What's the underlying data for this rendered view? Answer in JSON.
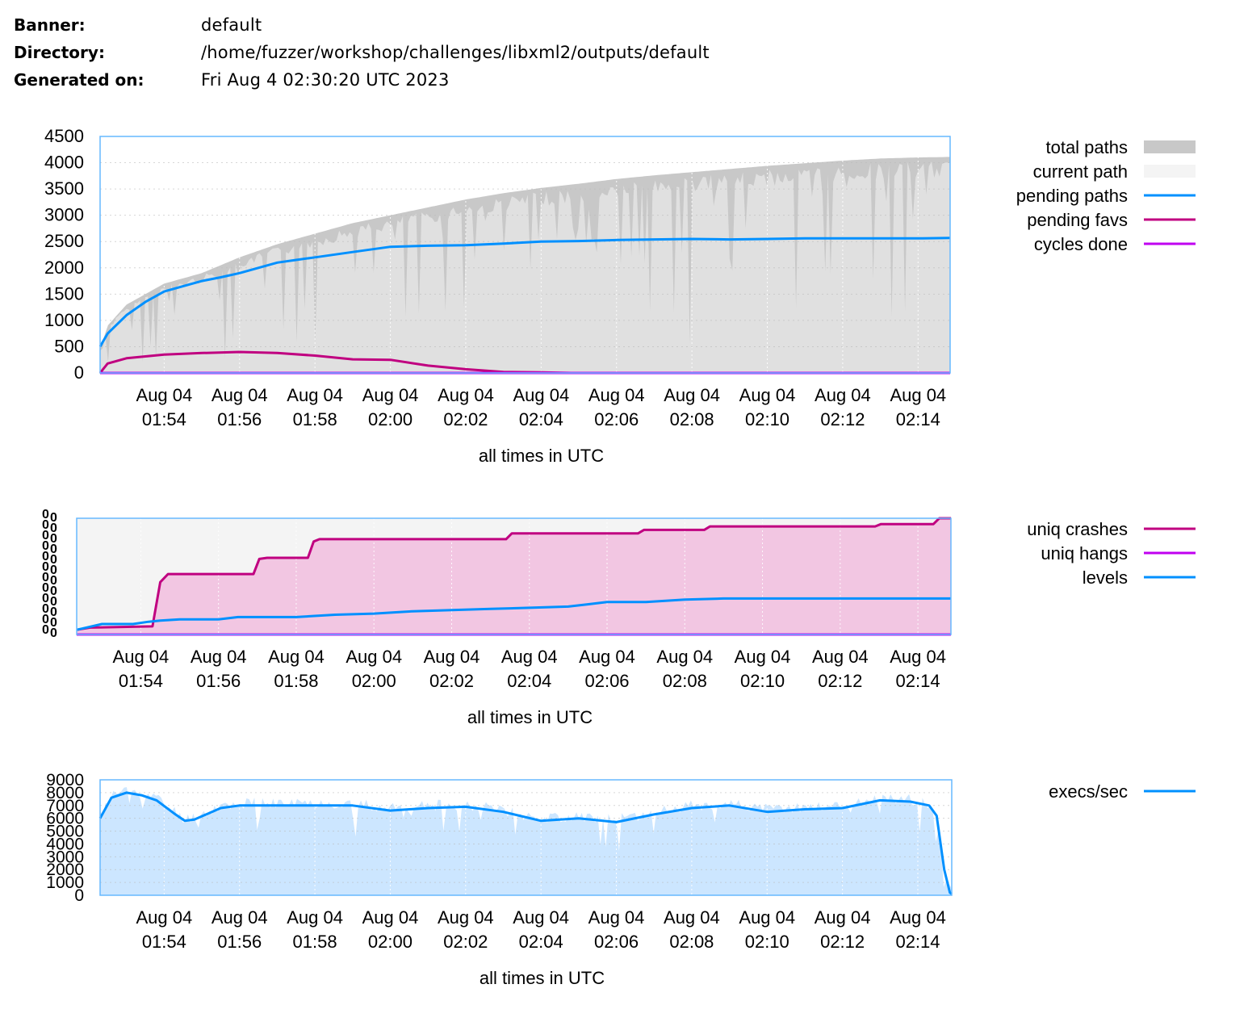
{
  "info": {
    "banner_label": "Banner:",
    "banner_value": "default",
    "directory_label": "Directory:",
    "directory_value": "/home/fuzzer/workshop/challenges/libxml2/outputs/default",
    "generated_label": "Generated on:",
    "generated_value": "Fri Aug 4 02:30:20 UTC 2023"
  },
  "colors": {
    "total_paths": "#c8c8c8",
    "current_path": "#e0e0e0",
    "pending_paths": "#0090ff",
    "pending_favs": "#c00080",
    "cycles_done": "#c000f0",
    "uniq_crashes": "#c00080",
    "uniq_hangs": "#c000f0",
    "levels": "#0090ff",
    "execs": "#0090ff",
    "execs_fill": "#cce6ff",
    "crash_fill": "#f2c6e2",
    "border": "#66b8ff"
  },
  "chart_data": [
    {
      "type": "area",
      "name": "paths",
      "xlabel": "all times in UTC",
      "xticks": [
        {
          "t": 0,
          "date": "Aug 04",
          "time": "01:54"
        },
        {
          "t": 2,
          "date": "Aug 04",
          "time": "01:56"
        },
        {
          "t": 4,
          "date": "Aug 04",
          "time": "01:58"
        },
        {
          "t": 6,
          "date": "Aug 04",
          "time": "02:00"
        },
        {
          "t": 8,
          "date": "Aug 04",
          "time": "02:02"
        },
        {
          "t": 10,
          "date": "Aug 04",
          "time": "02:04"
        },
        {
          "t": 12,
          "date": "Aug 04",
          "time": "02:06"
        },
        {
          "t": 14,
          "date": "Aug 04",
          "time": "02:08"
        },
        {
          "t": 16,
          "date": "Aug 04",
          "time": "02:10"
        },
        {
          "t": 18,
          "date": "Aug 04",
          "time": "02:12"
        },
        {
          "t": 20,
          "date": "Aug 04",
          "time": "02:14"
        }
      ],
      "xlim": [
        -1.7,
        20.85
      ],
      "ylim": [
        0,
        4500
      ],
      "yticks": [
        "0",
        "500",
        "1000",
        "1500",
        "2000",
        "2500",
        "3000",
        "3500",
        "4000",
        "4500"
      ],
      "legend": [
        "total paths",
        "current path",
        "pending paths",
        "pending favs",
        "cycles done"
      ],
      "series": [
        {
          "name": "total paths",
          "x": [
            -1.7,
            -1.5,
            -1,
            0,
            1,
            2,
            3,
            4,
            5,
            6,
            7,
            8,
            9,
            10,
            11,
            12,
            13,
            14,
            15,
            16,
            17,
            18,
            19,
            20,
            20.85
          ],
          "values": [
            450,
            900,
            1300,
            1700,
            1900,
            2200,
            2450,
            2650,
            2850,
            3000,
            3150,
            3300,
            3420,
            3520,
            3600,
            3690,
            3760,
            3820,
            3880,
            3940,
            3990,
            4040,
            4080,
            4100,
            4110
          ]
        },
        {
          "name": "pending paths",
          "x": [
            -1.7,
            -1.5,
            -1,
            -0.5,
            0,
            0.5,
            1,
            1.5,
            2,
            2.5,
            3,
            3.5,
            4,
            5,
            6,
            7,
            8,
            9,
            10,
            11,
            12,
            13,
            14,
            15,
            16,
            17,
            18,
            19,
            20,
            20.85
          ],
          "values": [
            500,
            750,
            1100,
            1350,
            1550,
            1650,
            1750,
            1820,
            1900,
            2000,
            2100,
            2150,
            2200,
            2300,
            2400,
            2420,
            2430,
            2460,
            2500,
            2510,
            2530,
            2540,
            2550,
            2540,
            2550,
            2560,
            2560,
            2560,
            2560,
            2570
          ]
        },
        {
          "name": "pending favs",
          "x": [
            -1.7,
            -1.5,
            -1,
            0,
            1,
            2,
            3,
            4,
            5,
            6,
            7,
            8,
            9,
            10,
            10.8,
            20.85
          ],
          "values": [
            0,
            180,
            280,
            350,
            380,
            400,
            380,
            330,
            260,
            250,
            140,
            70,
            20,
            10,
            0,
            0
          ]
        },
        {
          "name": "cycles done",
          "x": [
            -1.7,
            20.85
          ],
          "values": [
            0,
            0
          ]
        }
      ]
    },
    {
      "type": "area",
      "name": "crashes",
      "xlabel": "all times in UTC",
      "xticks": [
        {
          "t": 0,
          "date": "Aug 04",
          "time": "01:54"
        },
        {
          "t": 2,
          "date": "Aug 04",
          "time": "01:56"
        },
        {
          "t": 4,
          "date": "Aug 04",
          "time": "01:58"
        },
        {
          "t": 6,
          "date": "Aug 04",
          "time": "02:00"
        },
        {
          "t": 8,
          "date": "Aug 04",
          "time": "02:02"
        },
        {
          "t": 10,
          "date": "Aug 04",
          "time": "02:04"
        },
        {
          "t": 12,
          "date": "Aug 04",
          "time": "02:06"
        },
        {
          "t": 14,
          "date": "Aug 04",
          "time": "02:08"
        },
        {
          "t": 16,
          "date": "Aug 04",
          "time": "02:10"
        },
        {
          "t": 18,
          "date": "Aug 04",
          "time": "02:12"
        },
        {
          "t": 20,
          "date": "Aug 04",
          "time": "02:14"
        }
      ],
      "xlim": [
        -1.65,
        20.85
      ],
      "ylim": [
        0,
        100
      ],
      "yticks": [],
      "legend": [
        "uniq crashes",
        "uniq hangs",
        "levels"
      ],
      "series": [
        {
          "name": "uniq crashes",
          "x": [
            -1.65,
            -1.3,
            0.3,
            0.5,
            0.7,
            2.9,
            3.05,
            3.25,
            4.3,
            4.45,
            4.6,
            9.4,
            9.55,
            12.8,
            12.95,
            14.5,
            14.65,
            18.9,
            19.05,
            20.4,
            20.55,
            20.85
          ],
          "values": [
            4,
            6,
            7,
            45,
            52,
            52,
            65,
            66,
            66,
            80,
            82,
            82,
            87,
            87,
            90,
            90,
            93,
            93,
            95,
            95,
            100,
            100
          ]
        },
        {
          "name": "uniq hangs",
          "x": [
            -1.65,
            20.85
          ],
          "values": [
            0,
            0
          ]
        },
        {
          "name": "levels",
          "x": [
            -1.65,
            -1.4,
            -1,
            -0.2,
            0.2,
            0.5,
            1,
            2,
            2.5,
            4,
            5,
            6,
            7,
            8,
            9,
            10,
            11,
            11.5,
            12,
            13,
            14,
            15,
            16,
            17,
            18,
            19,
            20,
            20.85
          ],
          "values": [
            4,
            6,
            9,
            9,
            11,
            12,
            13,
            13,
            15,
            15,
            17,
            18,
            20,
            21,
            22,
            23,
            24,
            26,
            28,
            28,
            30,
            31,
            31,
            31,
            31,
            31,
            31,
            31
          ]
        }
      ]
    },
    {
      "type": "area",
      "name": "speed",
      "xlabel": "all times in UTC",
      "xticks": [
        {
          "t": 0,
          "date": "Aug 04",
          "time": "01:54"
        },
        {
          "t": 2,
          "date": "Aug 04",
          "time": "01:56"
        },
        {
          "t": 4,
          "date": "Aug 04",
          "time": "01:58"
        },
        {
          "t": 6,
          "date": "Aug 04",
          "time": "02:00"
        },
        {
          "t": 8,
          "date": "Aug 04",
          "time": "02:02"
        },
        {
          "t": 10,
          "date": "Aug 04",
          "time": "02:04"
        },
        {
          "t": 12,
          "date": "Aug 04",
          "time": "02:06"
        },
        {
          "t": 14,
          "date": "Aug 04",
          "time": "02:08"
        },
        {
          "t": 16,
          "date": "Aug 04",
          "time": "02:10"
        },
        {
          "t": 18,
          "date": "Aug 04",
          "time": "02:12"
        },
        {
          "t": 20,
          "date": "Aug 04",
          "time": "02:14"
        }
      ],
      "xlim": [
        -1.7,
        20.9
      ],
      "ylim": [
        0,
        9000
      ],
      "yticks": [
        "0",
        "1000",
        "2000",
        "3000",
        "4000",
        "5000",
        "6000",
        "7000",
        "8000",
        "9000"
      ],
      "legend": [
        "execs/sec"
      ],
      "series": [
        {
          "name": "execs/sec",
          "x": [
            -1.7,
            -1.4,
            -1,
            -0.6,
            -0.2,
            0.3,
            0.55,
            0.8,
            1.5,
            2,
            3,
            4,
            5,
            6,
            7,
            8,
            9,
            10,
            11,
            12,
            13,
            14,
            15,
            16,
            17,
            18,
            19,
            19.8,
            20.3,
            20.5,
            20.7,
            20.85,
            20.9
          ],
          "values": [
            6000,
            7600,
            8000,
            7800,
            7400,
            6300,
            5800,
            5900,
            6800,
            7000,
            7000,
            7000,
            7000,
            6600,
            6800,
            6900,
            6500,
            5800,
            6000,
            5700,
            6300,
            6800,
            7000,
            6500,
            6700,
            6800,
            7400,
            7300,
            7000,
            6200,
            2000,
            200,
            100
          ]
        }
      ]
    }
  ]
}
